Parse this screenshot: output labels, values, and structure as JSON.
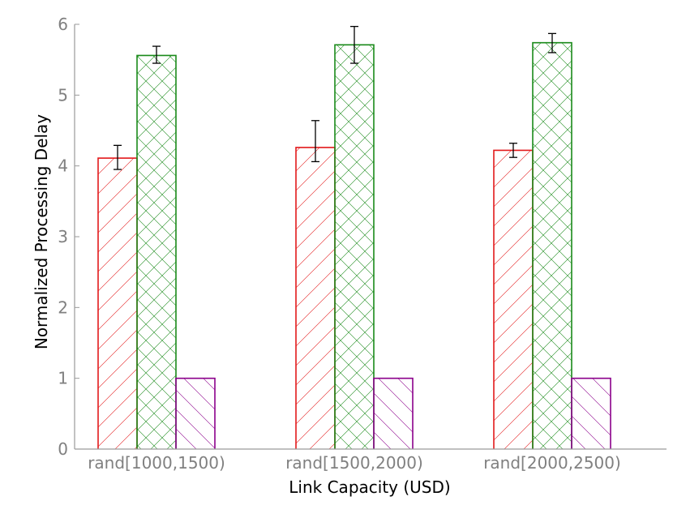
{
  "chart_data": {
    "type": "bar",
    "title": "",
    "xlabel": "Link Capacity (USD)",
    "ylabel": "Normalized Processing Delay",
    "categories": [
      "rand[1000,1500)",
      "rand[1500,2000)",
      "rand[2000,2500)"
    ],
    "ylim": [
      0,
      6
    ],
    "yticks": [
      "0",
      "1",
      "2",
      "3",
      "4",
      "5",
      "6"
    ],
    "grid": false,
    "legend": "none",
    "series": [
      {
        "color": "#e31a1c",
        "pattern": "diagonal-forward",
        "values": [
          4.11,
          4.26,
          4.22
        ],
        "errors": [
          [
            3.95,
            4.29
          ],
          [
            4.06,
            4.64
          ],
          [
            4.12,
            4.32
          ]
        ]
      },
      {
        "color": "#1a8a1a",
        "pattern": "crosshatch",
        "values": [
          5.56,
          5.71,
          5.74
        ],
        "errors": [
          [
            5.45,
            5.69
          ],
          [
            5.45,
            5.97
          ],
          [
            5.6,
            5.87
          ]
        ]
      },
      {
        "color": "#8b008b",
        "pattern": "diagonal-back",
        "values": [
          1.0,
          1.0,
          1.0
        ],
        "errors": null
      }
    ]
  }
}
